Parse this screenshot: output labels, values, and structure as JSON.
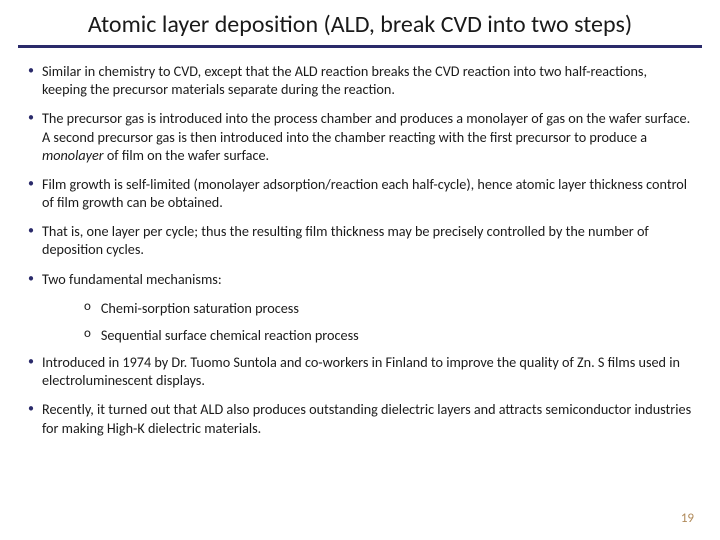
{
  "title": "Atomic layer deposition (ALD, break CVD into two steps)",
  "accent_color": "#2a2a6a",
  "pagenum_color": "#b08a5a",
  "bullets": {
    "b1": "Similar in chemistry to CVD, except that the ALD reaction breaks the CVD reaction into two half-reactions, keeping the precursor materials separate during the reaction.",
    "b2_pre": "The precursor gas is introduced into the process chamber and produces a monolayer of gas on the wafer surface.  A second precursor gas is then introduced into the chamber reacting with the first precursor to produce a ",
    "b2_em": "monolayer",
    "b2_post": " of film on the wafer surface.",
    "b3": "Film growth is self-limited (monolayer adsorption/reaction each half-cycle), hence atomic layer thickness control of film growth can be obtained.",
    "b4": "That is, one layer per cycle; thus the resulting film thickness may be precisely controlled by the number of deposition cycles.",
    "b5": "Two fundamental mechanisms:",
    "b5a": "Chemi-sorption saturation process",
    "b5b": "Sequential surface chemical reaction process",
    "b6": "Introduced in 1974 by Dr. Tuomo Suntola and co-workers in Finland to improve the quality of Zn. S films used in electroluminescent displays.",
    "b7": "Recently, it turned out that ALD also produces outstanding dielectric layers and attracts semiconductor industries for making High-K dielectric materials."
  },
  "page_number": "19"
}
